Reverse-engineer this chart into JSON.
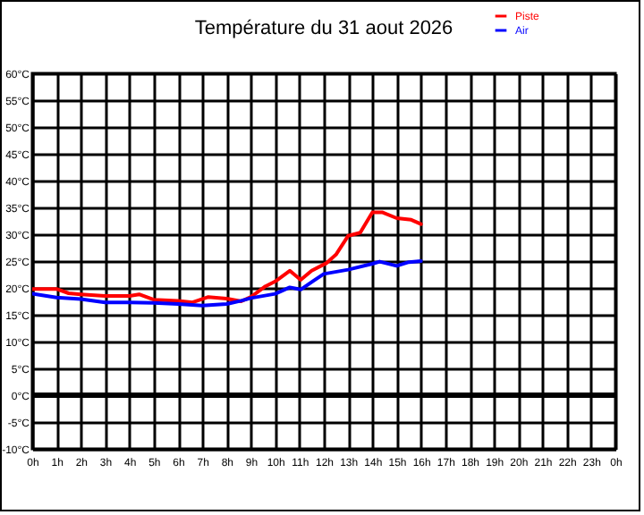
{
  "chart_data": {
    "type": "line",
    "title": "Température du 31 aout 2026",
    "xlim": [
      "2026-08-31T00:00",
      "2026-09-01T00:00"
    ],
    "xticks": [
      {
        "value": "2026-08-31T00:00",
        "label": "0h"
      },
      {
        "value": "2026-08-31T01:00",
        "label": "1h"
      },
      {
        "value": "2026-08-31T02:00",
        "label": "2h"
      },
      {
        "value": "2026-08-31T03:00",
        "label": "3h"
      },
      {
        "value": "2026-08-31T04:00",
        "label": "4h"
      },
      {
        "value": "2026-08-31T05:00",
        "label": "5h"
      },
      {
        "value": "2026-08-31T06:00",
        "label": "6h"
      },
      {
        "value": "2026-08-31T07:00",
        "label": "7h"
      },
      {
        "value": "2026-08-31T08:00",
        "label": "8h"
      },
      {
        "value": "2026-08-31T09:00",
        "label": "9h"
      },
      {
        "value": "2026-08-31T10:00",
        "label": "10h"
      },
      {
        "value": "2026-08-31T11:00",
        "label": "11h"
      },
      {
        "value": "2026-08-31T12:00",
        "label": "12h"
      },
      {
        "value": "2026-08-31T13:00",
        "label": "13h"
      },
      {
        "value": "2026-08-31T14:00",
        "label": "14h"
      },
      {
        "value": "2026-08-31T15:00",
        "label": "15h"
      },
      {
        "value": "2026-08-31T16:00",
        "label": "16h"
      },
      {
        "value": "2026-08-31T17:00",
        "label": "17h"
      },
      {
        "value": "2026-08-31T18:00",
        "label": "18h"
      },
      {
        "value": "2026-08-31T19:00",
        "label": "19h"
      },
      {
        "value": "2026-08-31T20:00",
        "label": "20h"
      },
      {
        "value": "2026-08-31T21:00",
        "label": "21h"
      },
      {
        "value": "2026-08-31T22:00",
        "label": "22h"
      },
      {
        "value": "2026-08-31T23:00",
        "label": "23h"
      },
      {
        "value": "2026-09-01T00:00",
        "label": "0h"
      }
    ],
    "ylim": [
      -10,
      60
    ],
    "yticks": [
      {
        "value": -10,
        "label": "-10°C"
      },
      {
        "value": -5,
        "label": "-5°C"
      },
      {
        "value": 0,
        "label": "0°C"
      },
      {
        "value": 5,
        "label": "5°C"
      },
      {
        "value": 10,
        "label": "10°C"
      },
      {
        "value": 15,
        "label": "15°C"
      },
      {
        "value": 20,
        "label": "20°C"
      },
      {
        "value": 25,
        "label": "25°C"
      },
      {
        "value": 30,
        "label": "30°C"
      },
      {
        "value": 35,
        "label": "35°C"
      },
      {
        "value": 40,
        "label": "40°C"
      },
      {
        "value": 45,
        "label": "45°C"
      },
      {
        "value": 50,
        "label": "50°C"
      },
      {
        "value": 55,
        "label": "55°C"
      },
      {
        "value": 60,
        "label": "60°C"
      }
    ],
    "grid": true,
    "legend": "top right",
    "line_style": "solid",
    "ref_lines": [
      {
        "axis": "y",
        "value": 0,
        "color": "#000000"
      }
    ],
    "series": [
      {
        "name": "Piste",
        "color": "#ff0000",
        "x": [
          "2026-08-31T00:00",
          "2026-08-31T01:00",
          "2026-08-31T01:30",
          "2026-08-31T02:00",
          "2026-08-31T03:00",
          "2026-08-31T04:00",
          "2026-08-31T04:24",
          "2026-08-31T05:00",
          "2026-08-31T06:00",
          "2026-08-31T06:36",
          "2026-08-31T07:15",
          "2026-08-31T08:00",
          "2026-08-31T08:36",
          "2026-08-31T09:00",
          "2026-08-31T09:36",
          "2026-08-31T10:00",
          "2026-08-31T10:36",
          "2026-08-31T11:03",
          "2026-08-31T11:30",
          "2026-08-31T12:06",
          "2026-08-31T12:30",
          "2026-08-31T13:00",
          "2026-08-31T13:30",
          "2026-08-31T14:00",
          "2026-08-31T14:24",
          "2026-08-31T15:00",
          "2026-08-31T15:36",
          "2026-08-31T16:00"
        ],
        "values": [
          19.8,
          19.8,
          19,
          18.8,
          18.5,
          18.5,
          18.8,
          17.8,
          17.6,
          17.3,
          18.3,
          18,
          17.5,
          18.3,
          20.3,
          21.2,
          23.2,
          21.5,
          23.2,
          24.6,
          26.2,
          29.7,
          30.3,
          34.1,
          34.1,
          33,
          32.7,
          31.9
        ]
      },
      {
        "name": "Air",
        "color": "#0000ff",
        "x": [
          "2026-08-31T00:00",
          "2026-08-31T01:00",
          "2026-08-31T02:00",
          "2026-08-31T03:00",
          "2026-08-31T04:00",
          "2026-08-31T05:00",
          "2026-08-31T06:00",
          "2026-08-31T07:00",
          "2026-08-31T08:00",
          "2026-08-31T08:36",
          "2026-08-31T09:00",
          "2026-08-31T10:00",
          "2026-08-31T10:36",
          "2026-08-31T11:03",
          "2026-08-31T11:36",
          "2026-08-31T12:00",
          "2026-08-31T13:00",
          "2026-08-31T14:00",
          "2026-08-31T14:18",
          "2026-08-31T15:00",
          "2026-08-31T15:30",
          "2026-08-31T16:00"
        ],
        "values": [
          18.9,
          18.2,
          17.9,
          17.3,
          17.3,
          17.2,
          17,
          16.7,
          17,
          17.6,
          18.1,
          18.9,
          20.1,
          19.7,
          21.4,
          22.6,
          23.4,
          24.5,
          24.9,
          24.1,
          24.8,
          25
        ]
      }
    ]
  }
}
